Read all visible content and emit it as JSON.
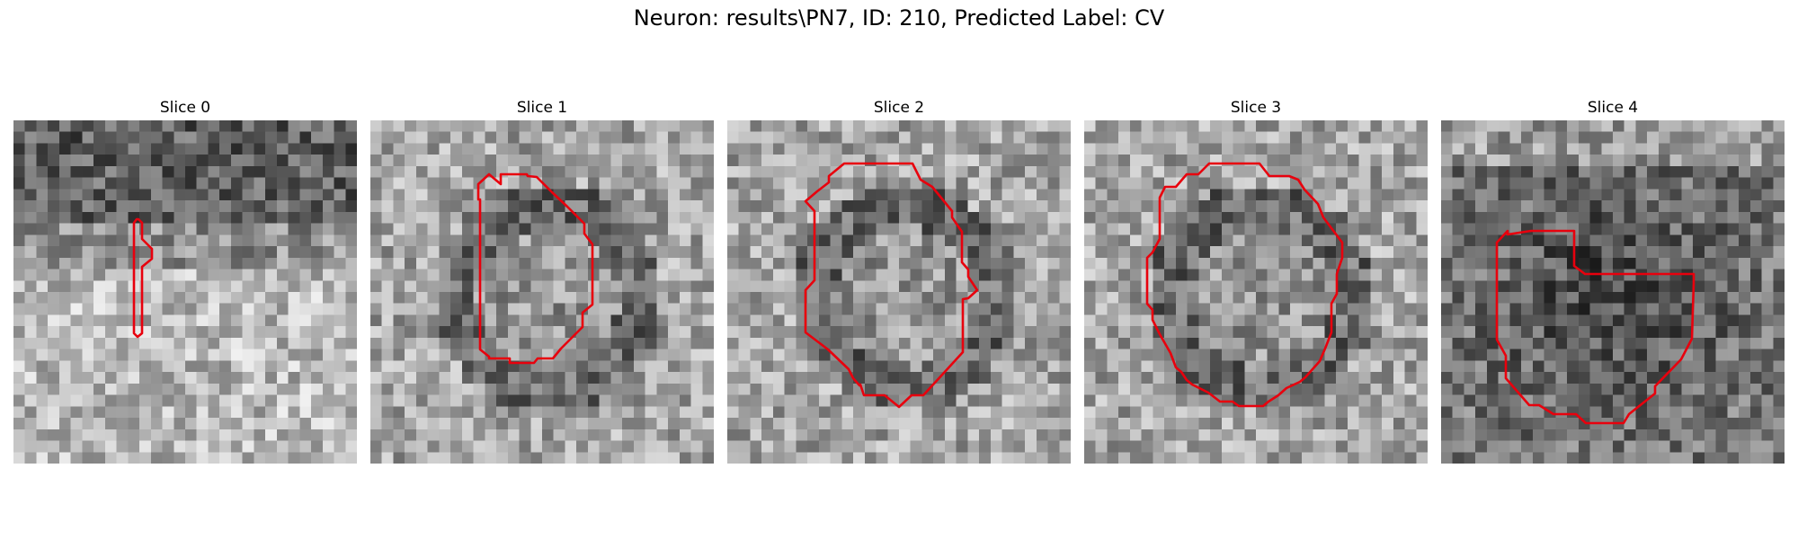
{
  "figure": {
    "title": "Neuron: results\\PN7, ID: 210, Predicted Label: CV",
    "contour_color": "#e8000d"
  },
  "slices": [
    {
      "title": "Slice 0"
    },
    {
      "title": "Slice 1"
    },
    {
      "title": "Slice 2"
    },
    {
      "title": "Slice 3"
    },
    {
      "title": "Slice 4"
    }
  ]
}
